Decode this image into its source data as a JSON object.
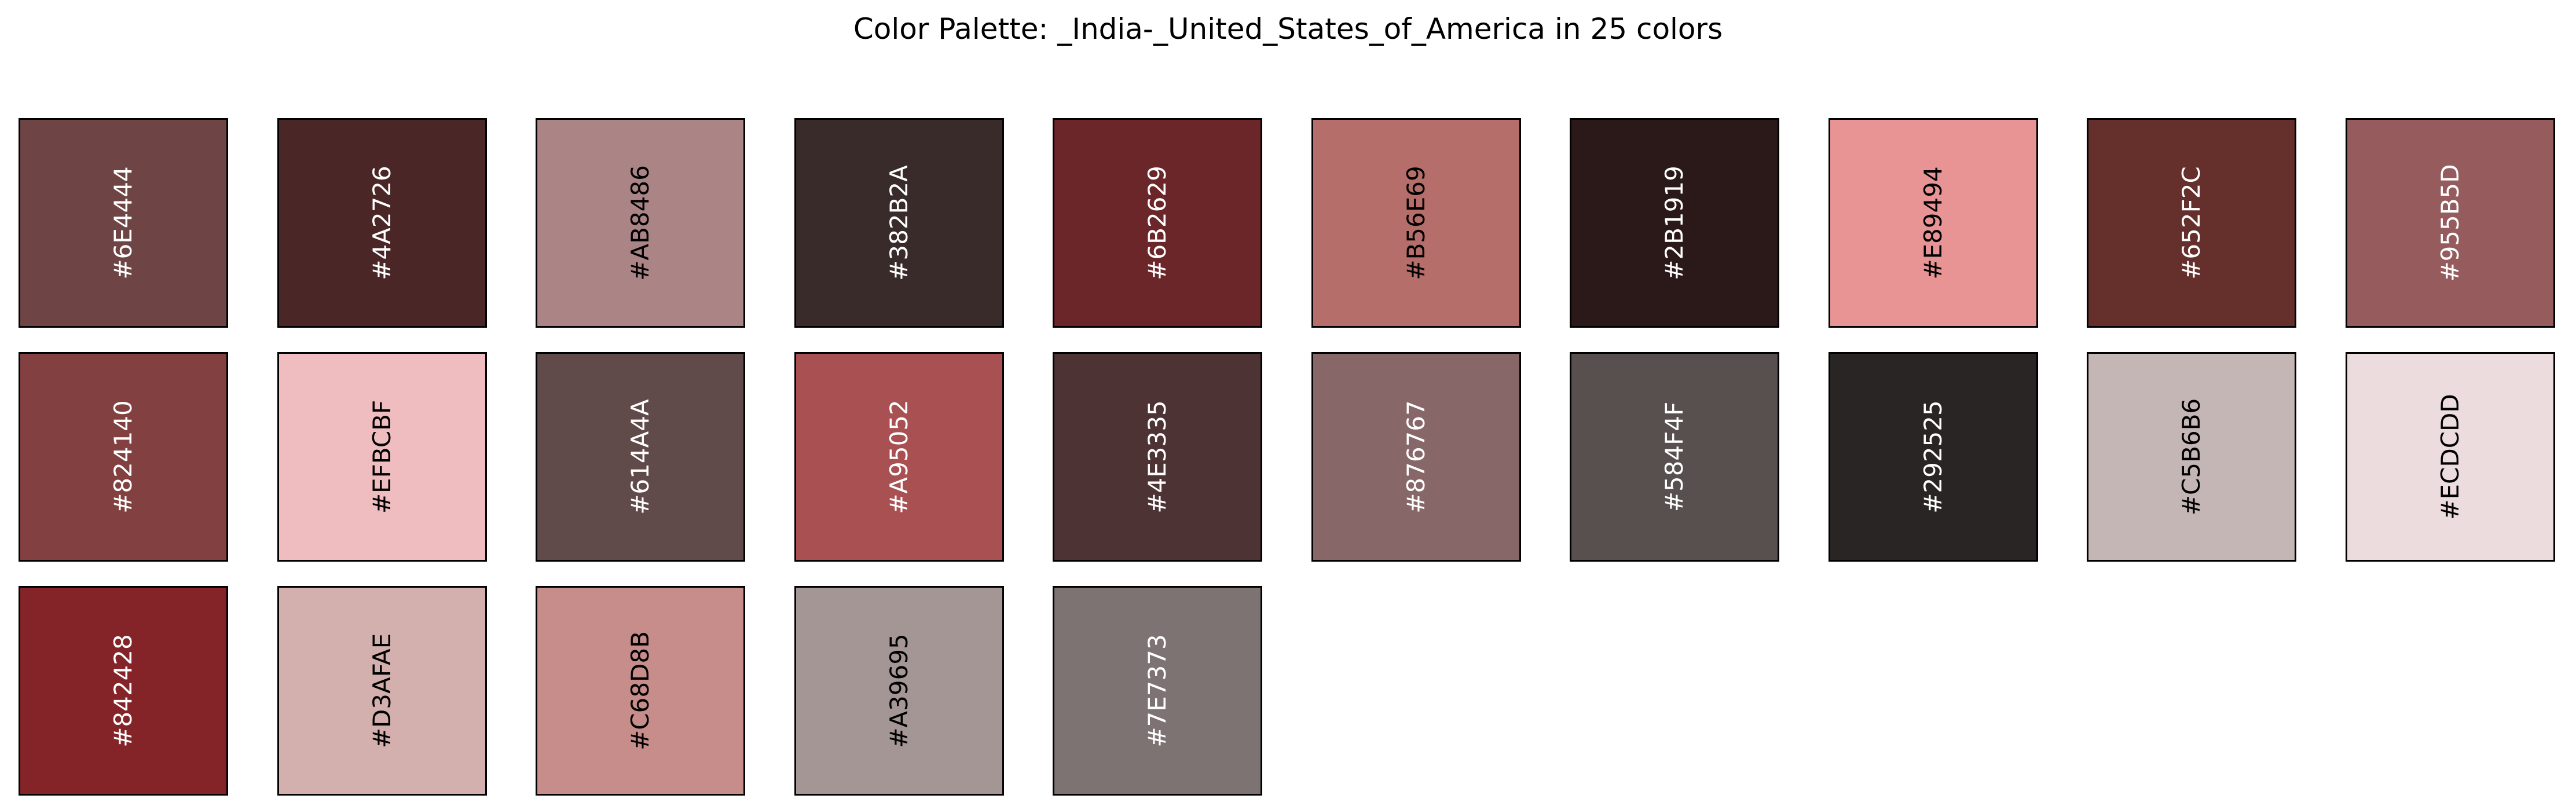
{
  "title": "Color Palette: _India-_United_States_of_America in 25 colors",
  "swatches": [
    {
      "label": "#6E4444",
      "color": "#6E4444",
      "text_color": "#FFFFFF"
    },
    {
      "label": "#4A2726",
      "color": "#4A2726",
      "text_color": "#FFFFFF"
    },
    {
      "label": "#AB8486",
      "color": "#AB8486",
      "text_color": "#000000"
    },
    {
      "label": "#382B2A",
      "color": "#382B2A",
      "text_color": "#FFFFFF"
    },
    {
      "label": "#6B2629",
      "color": "#6B2629",
      "text_color": "#FFFFFF"
    },
    {
      "label": "#B56E69",
      "color": "#B56E69",
      "text_color": "#000000"
    },
    {
      "label": "#2B1919",
      "color": "#2B1919",
      "text_color": "#FFFFFF"
    },
    {
      "label": "#E89494",
      "color": "#E89494",
      "text_color": "#000000"
    },
    {
      "label": "#652F2C",
      "color": "#652F2C",
      "text_color": "#FFFFFF"
    },
    {
      "label": "#955B5D",
      "color": "#955B5D",
      "text_color": "#FFFFFF"
    },
    {
      "label": "#824140",
      "color": "#824140",
      "text_color": "#FFFFFF"
    },
    {
      "label": "#EFBCBF",
      "color": "#EFBCBF",
      "text_color": "#000000"
    },
    {
      "label": "#614A4A",
      "color": "#614A4A",
      "text_color": "#FFFFFF"
    },
    {
      "label": "#A95052",
      "color": "#A95052",
      "text_color": "#FFFFFF"
    },
    {
      "label": "#4E3335",
      "color": "#4E3335",
      "text_color": "#FFFFFF"
    },
    {
      "label": "#876767",
      "color": "#876767",
      "text_color": "#FFFFFF"
    },
    {
      "label": "#584F4F",
      "color": "#584F4F",
      "text_color": "#FFFFFF"
    },
    {
      "label": "#292525",
      "color": "#292525",
      "text_color": "#FFFFFF"
    },
    {
      "label": "#C5B6B6",
      "color": "#C5B6B6",
      "text_color": "#000000"
    },
    {
      "label": "#ECDCDD",
      "color": "#ECDCDD",
      "text_color": "#000000"
    },
    {
      "label": "#842428",
      "color": "#842428",
      "text_color": "#FFFFFF"
    },
    {
      "label": "#D3AFAE",
      "color": "#D3AFAE",
      "text_color": "#000000"
    },
    {
      "label": "#C68D8B",
      "color": "#C68D8B",
      "text_color": "#000000"
    },
    {
      "label": "#A39695",
      "color": "#A39695",
      "text_color": "#000000"
    },
    {
      "label": "#7E7373",
      "color": "#7E7373",
      "text_color": "#FFFFFF"
    }
  ]
}
